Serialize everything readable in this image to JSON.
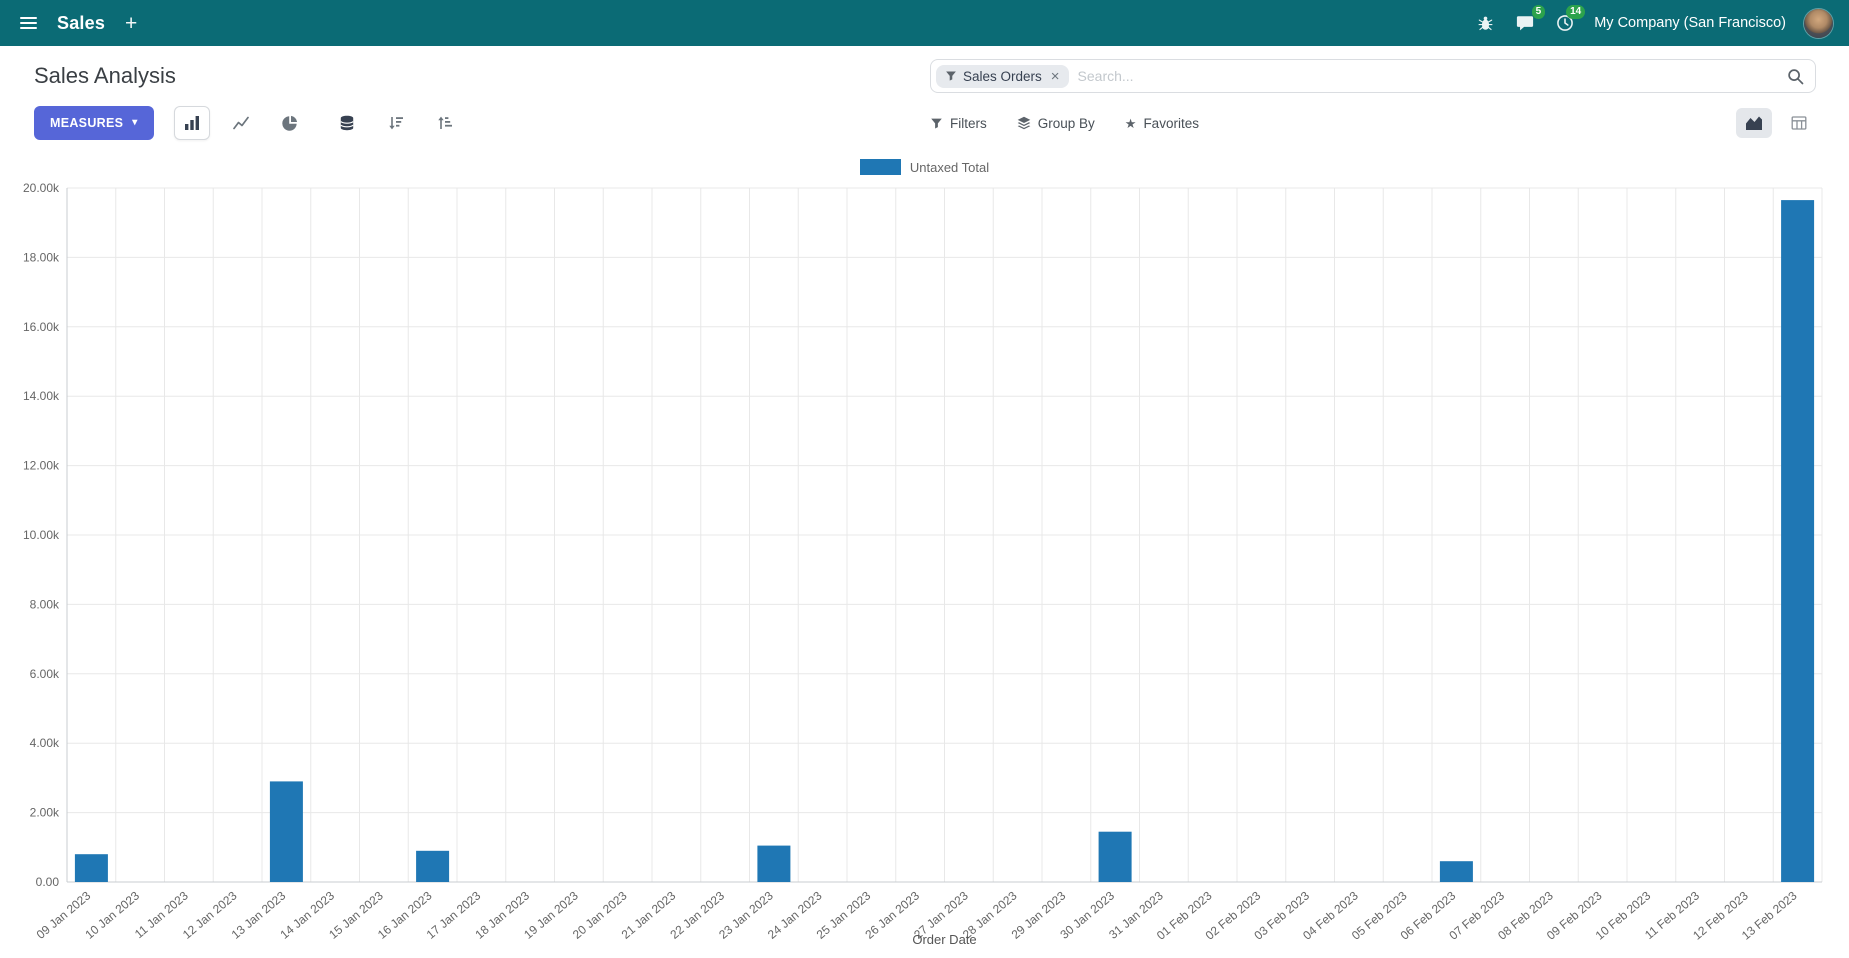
{
  "colors": {
    "navbar_bg": "#0b6b75",
    "primary_btn": "#5666d8",
    "bar_color": "#1f77b4",
    "badge_bg": "#2ca24c"
  },
  "icons": {
    "plus": "+",
    "close": "×",
    "caret_down": "▾",
    "star": "★"
  },
  "navbar": {
    "app_name": "Sales",
    "messages_badge": "5",
    "activities_badge": "14",
    "company": "My Company (San Francisco)"
  },
  "control_panel": {
    "title": "Sales Analysis",
    "measures_label": "MEASURES",
    "search": {
      "facet": "Sales Orders",
      "placeholder": "Search..."
    },
    "filters_label": "Filters",
    "group_by_label": "Group By",
    "favorites_label": "Favorites"
  },
  "chart_data": {
    "type": "bar",
    "title": "",
    "xlabel": "Order Date",
    "ylabel": "",
    "ylim": [
      0,
      20000
    ],
    "grid": true,
    "legend_position": "top",
    "y_ticks": [
      {
        "value": 0,
        "label": "0.00"
      },
      {
        "value": 2000,
        "label": "2.00k"
      },
      {
        "value": 4000,
        "label": "4.00k"
      },
      {
        "value": 6000,
        "label": "6.00k"
      },
      {
        "value": 8000,
        "label": "8.00k"
      },
      {
        "value": 10000,
        "label": "10.00k"
      },
      {
        "value": 12000,
        "label": "12.00k"
      },
      {
        "value": 14000,
        "label": "14.00k"
      },
      {
        "value": 16000,
        "label": "16.00k"
      },
      {
        "value": 18000,
        "label": "18.00k"
      },
      {
        "value": 20000,
        "label": "20.00k"
      }
    ],
    "categories": [
      "09 Jan 2023",
      "10 Jan 2023",
      "11 Jan 2023",
      "12 Jan 2023",
      "13 Jan 2023",
      "14 Jan 2023",
      "15 Jan 2023",
      "16 Jan 2023",
      "17 Jan 2023",
      "18 Jan 2023",
      "19 Jan 2023",
      "20 Jan 2023",
      "21 Jan 2023",
      "22 Jan 2023",
      "23 Jan 2023",
      "24 Jan 2023",
      "25 Jan 2023",
      "26 Jan 2023",
      "27 Jan 2023",
      "28 Jan 2023",
      "29 Jan 2023",
      "30 Jan 2023",
      "31 Jan 2023",
      "01 Feb 2023",
      "02 Feb 2023",
      "03 Feb 2023",
      "04 Feb 2023",
      "05 Feb 2023",
      "06 Feb 2023",
      "07 Feb 2023",
      "08 Feb 2023",
      "09 Feb 2023",
      "10 Feb 2023",
      "11 Feb 2023",
      "12 Feb 2023",
      "13 Feb 2023"
    ],
    "series": [
      {
        "name": "Untaxed Total",
        "color": "#1f77b4",
        "values": [
          800,
          0,
          0,
          0,
          2900,
          0,
          0,
          900,
          0,
          0,
          0,
          0,
          0,
          0,
          1050,
          0,
          0,
          0,
          0,
          0,
          0,
          1450,
          0,
          0,
          0,
          0,
          0,
          0,
          600,
          0,
          0,
          0,
          0,
          0,
          0,
          19650
        ]
      }
    ]
  }
}
